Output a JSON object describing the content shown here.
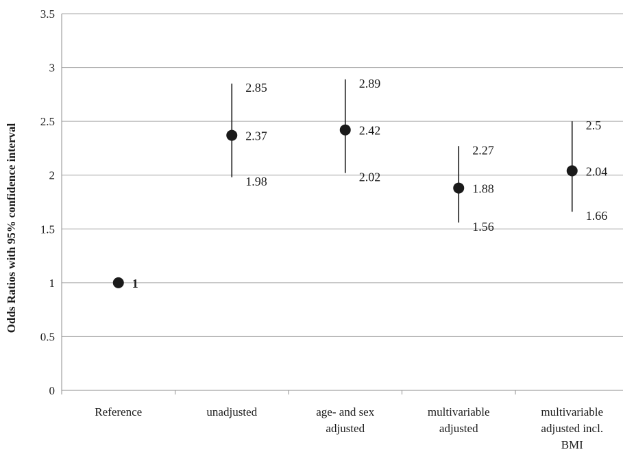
{
  "chart_data": {
    "type": "scatter",
    "ylabel": "Odds Ratios with 95% confidence interval",
    "xlabel": "",
    "ylim": [
      0,
      3.5
    ],
    "yticks": [
      "0",
      "0.5",
      "1",
      "1.5",
      "2",
      "2.5",
      "3",
      "3.5"
    ],
    "grid": true,
    "categories": [
      [
        "Reference"
      ],
      [
        "unadjusted"
      ],
      [
        "age- and sex",
        "adjusted"
      ],
      [
        "multivariable",
        "adjusted"
      ],
      [
        "multivariable",
        "adjusted incl.",
        "BMI"
      ]
    ],
    "points": [
      {
        "value": 1,
        "label": "1"
      },
      {
        "value": 2.37,
        "label": "2.37",
        "upper": 2.85,
        "upper_label": "2.85",
        "lower": 1.98,
        "lower_label": "1.98"
      },
      {
        "value": 2.42,
        "label": "2.42",
        "upper": 2.89,
        "upper_label": "2.89",
        "lower": 2.02,
        "lower_label": "2.02"
      },
      {
        "value": 1.88,
        "label": "1.88",
        "upper": 2.27,
        "upper_label": "2.27",
        "lower": 1.56,
        "lower_label": "1.56"
      },
      {
        "value": 2.04,
        "label": "2.04",
        "upper": 2.5,
        "upper_label": "2.5",
        "lower": 1.66,
        "lower_label": "1.66"
      }
    ],
    "colors": {
      "point": "#1a1a1a",
      "grid": "#a6a6a6",
      "axis": "#8c8c8c"
    }
  }
}
